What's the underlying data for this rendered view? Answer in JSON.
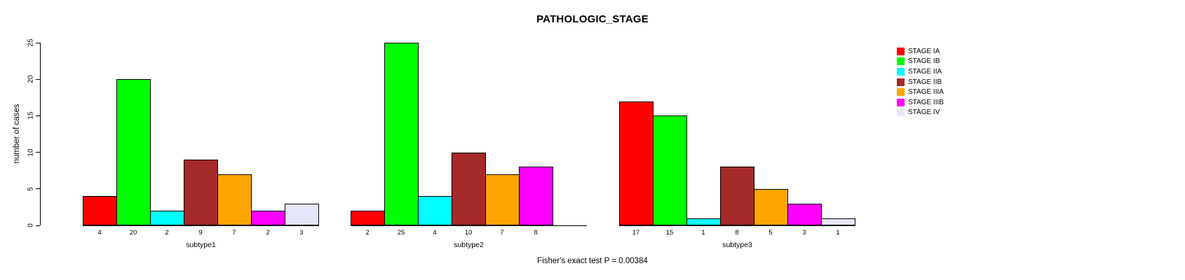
{
  "chart_data": {
    "type": "bar",
    "title": "PATHOLOGIC_STAGE",
    "ylabel": "number of cases",
    "yticks": [
      0,
      5,
      10,
      15,
      20,
      25
    ],
    "ylim": [
      0,
      25
    ],
    "grid": false,
    "legend_position": "right",
    "categories": [
      "subtype1",
      "subtype2",
      "subtype3"
    ],
    "series": [
      {
        "name": "STAGE IA",
        "color": "#FF0000"
      },
      {
        "name": "STAGE IB",
        "color": "#00FF00"
      },
      {
        "name": "STAGE IIA",
        "color": "#00FFFF"
      },
      {
        "name": "STAGE IIB",
        "color": "#A52A2A"
      },
      {
        "name": "STAGE IIIA",
        "color": "#FFA500"
      },
      {
        "name": "STAGE IIIB",
        "color": "#FF00FF"
      },
      {
        "name": "STAGE IV",
        "color": "#E6E6FA"
      }
    ],
    "groups": [
      {
        "label": "subtype1",
        "values": [
          4,
          20,
          2,
          9,
          7,
          2,
          3
        ]
      },
      {
        "label": "subtype2",
        "values": [
          2,
          25,
          4,
          10,
          7,
          8,
          0
        ]
      },
      {
        "label": "subtype3",
        "values": [
          17,
          15,
          1,
          8,
          5,
          3,
          1
        ]
      }
    ],
    "annotation": "Fisher's exact test P = 0.00384"
  }
}
